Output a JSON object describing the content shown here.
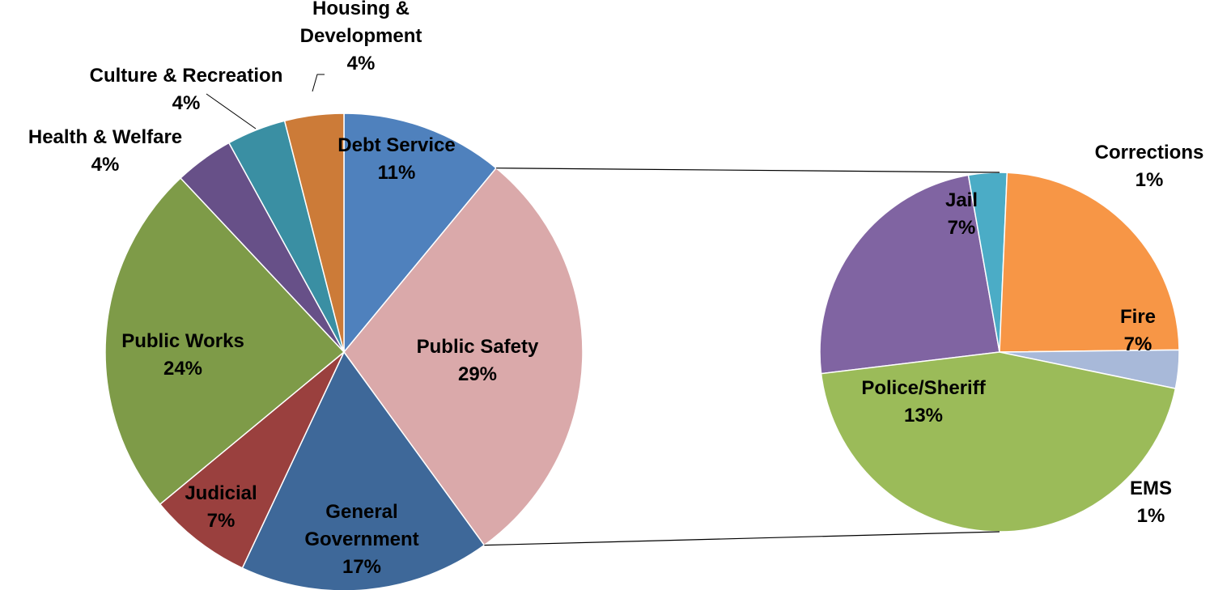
{
  "chart_data": [
    {
      "type": "pie",
      "title": "",
      "slices": [
        {
          "label": "Debt Service",
          "pct_label": "11%",
          "value": 11,
          "color": "#4F81BD"
        },
        {
          "label": "Public Safety",
          "pct_label": "29%",
          "value": 29,
          "color": "#DAA9AA"
        },
        {
          "label": "General Government",
          "pct_label": "17%",
          "value": 17,
          "color": "#3E6899"
        },
        {
          "label": "Judicial",
          "pct_label": "7%",
          "value": 7,
          "color": "#9A403E"
        },
        {
          "label": "Public Works",
          "pct_label": "24%",
          "value": 24,
          "color": "#7E9B48"
        },
        {
          "label": "Health & Welfare",
          "pct_label": "4%",
          "value": 4,
          "color": "#675088"
        },
        {
          "label": "Culture & Recreation",
          "pct_label": "4%",
          "value": 4,
          "color": "#3A8FA3"
        },
        {
          "label": "Housing & Development",
          "pct_label": "4%",
          "value": 4,
          "color": "#CC7B38"
        }
      ]
    },
    {
      "type": "pie",
      "title": "",
      "breakdown_of": "Public Safety",
      "slices": [
        {
          "label": "Jail",
          "pct_label": "7%",
          "value": 7,
          "color": "#8064A2"
        },
        {
          "label": "Corrections",
          "pct_label": "1%",
          "value": 1,
          "color": "#4BACC6"
        },
        {
          "label": "Fire",
          "pct_label": "7%",
          "value": 7,
          "color": "#F79646"
        },
        {
          "label": "EMS",
          "pct_label": "1%",
          "value": 1,
          "color": "#A8B9D9"
        },
        {
          "label": "Police/Sheriff",
          "pct_label": "13%",
          "value": 13,
          "color": "#9BBB59"
        }
      ]
    }
  ]
}
